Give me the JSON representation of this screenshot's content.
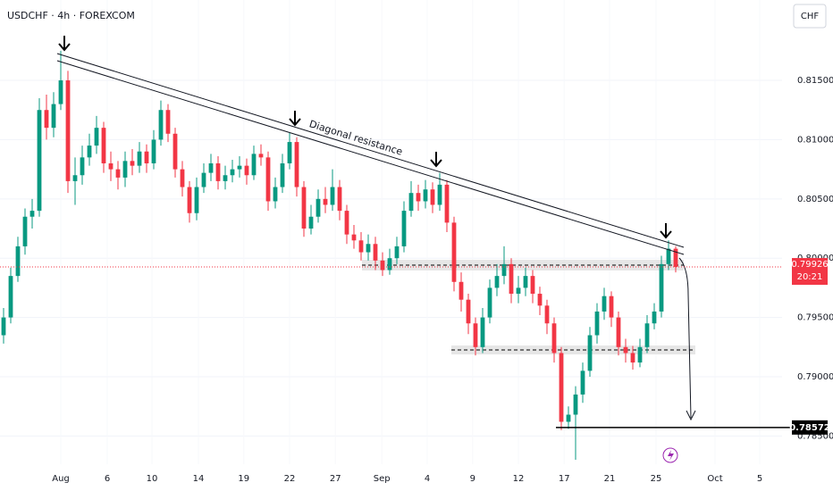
{
  "chart_data": {
    "type": "candlestick",
    "title": "USDCHF · 4h · FOREXCOM",
    "currency": "CHF",
    "annotation": "Diagonal resistance",
    "up_color": "#089981",
    "down_color": "#f23645",
    "open": [
      0.7935,
      0.795,
      0.7985,
      0.801,
      0.8035,
      0.804,
      0.8125,
      0.811,
      0.813,
      0.815,
      0.8065,
      0.807,
      0.8085,
      0.8095,
      0.811,
      0.808,
      0.8075,
      0.8068,
      0.8082,
      0.8078,
      0.809,
      0.808,
      0.81,
      0.8125,
      0.8105,
      0.8075,
      0.806,
      0.8038,
      0.806,
      0.8072,
      0.808,
      0.8065,
      0.807,
      0.8075,
      0.8078,
      0.807,
      0.8088,
      0.8085,
      0.8048,
      0.806,
      0.808,
      0.8098,
      0.806,
      0.8025,
      0.8035,
      0.805,
      0.8045,
      0.806,
      0.804,
      0.802,
      0.8015,
      0.8005,
      0.8012,
      0.7998,
      0.799,
      0.8,
      0.801,
      0.804,
      0.8055,
      0.8048,
      0.8058,
      0.8045,
      0.8062,
      0.803,
      0.798,
      0.7965,
      0.7945,
      0.7925,
      0.795,
      0.7975,
      0.7985,
      0.7995,
      0.797,
      0.7975,
      0.7985,
      0.797,
      0.796,
      0.7945,
      0.792,
      0.7862,
      0.7868,
      0.7885,
      0.7905,
      0.7935,
      0.7955,
      0.7968,
      0.795,
      0.7925,
      0.792,
      0.7912,
      0.7925,
      0.7945,
      0.7955,
      0.7995,
      0.8008
    ],
    "high": [
      0.7958,
      0.7992,
      0.8018,
      0.8042,
      0.805,
      0.8135,
      0.8138,
      0.814,
      0.8175,
      0.8158,
      0.8085,
      0.8095,
      0.8105,
      0.812,
      0.8115,
      0.809,
      0.8082,
      0.809,
      0.8092,
      0.8098,
      0.8096,
      0.8108,
      0.8133,
      0.813,
      0.811,
      0.8082,
      0.8065,
      0.8068,
      0.808,
      0.8088,
      0.8086,
      0.8078,
      0.8083,
      0.8086,
      0.8084,
      0.8095,
      0.8096,
      0.809,
      0.8068,
      0.8088,
      0.8106,
      0.8102,
      0.8065,
      0.8045,
      0.8058,
      0.806,
      0.8075,
      0.8066,
      0.8045,
      0.8028,
      0.8022,
      0.802,
      0.8018,
      0.8005,
      0.8008,
      0.8018,
      0.8048,
      0.8065,
      0.8062,
      0.8066,
      0.8064,
      0.8072,
      0.8066,
      0.8035,
      0.7988,
      0.797,
      0.795,
      0.7958,
      0.7982,
      0.7995,
      0.801,
      0.8,
      0.7985,
      0.7992,
      0.799,
      0.7976,
      0.7965,
      0.795,
      0.7925,
      0.7875,
      0.7892,
      0.7912,
      0.7942,
      0.7962,
      0.7975,
      0.7972,
      0.7955,
      0.7932,
      0.7926,
      0.7932,
      0.7952,
      0.7962,
      0.8002,
      0.8015,
      0.801
    ],
    "low": [
      0.7928,
      0.7945,
      0.798,
      0.8003,
      0.8025,
      0.8035,
      0.81,
      0.8102,
      0.8125,
      0.8055,
      0.8045,
      0.8062,
      0.8078,
      0.8088,
      0.8072,
      0.8065,
      0.8058,
      0.806,
      0.807,
      0.8072,
      0.8072,
      0.8075,
      0.8095,
      0.8098,
      0.8068,
      0.8052,
      0.803,
      0.8032,
      0.8055,
      0.8065,
      0.8058,
      0.8058,
      0.8064,
      0.8068,
      0.8062,
      0.8066,
      0.8078,
      0.804,
      0.8042,
      0.8055,
      0.8075,
      0.8052,
      0.8018,
      0.802,
      0.803,
      0.8038,
      0.804,
      0.8032,
      0.8012,
      0.8008,
      0.7998,
      0.7998,
      0.799,
      0.7985,
      0.7986,
      0.7995,
      0.8005,
      0.8035,
      0.804,
      0.8042,
      0.8038,
      0.804,
      0.8022,
      0.7972,
      0.7955,
      0.7936,
      0.7918,
      0.792,
      0.7945,
      0.7968,
      0.7978,
      0.7962,
      0.7962,
      0.7968,
      0.7962,
      0.7952,
      0.7936,
      0.7912,
      0.7855,
      0.7856,
      0.783,
      0.7878,
      0.79,
      0.7928,
      0.7948,
      0.7942,
      0.7918,
      0.7912,
      0.7906,
      0.7908,
      0.792,
      0.794,
      0.795,
      0.799,
      0.7988
    ],
    "close": [
      0.795,
      0.7985,
      0.801,
      0.8035,
      0.804,
      0.8125,
      0.811,
      0.813,
      0.815,
      0.8065,
      0.807,
      0.8085,
      0.8095,
      0.811,
      0.808,
      0.8075,
      0.8068,
      0.8082,
      0.8078,
      0.809,
      0.808,
      0.81,
      0.8125,
      0.8105,
      0.8075,
      0.806,
      0.8038,
      0.806,
      0.8072,
      0.808,
      0.8065,
      0.807,
      0.8075,
      0.8078,
      0.807,
      0.8088,
      0.8085,
      0.8048,
      0.806,
      0.808,
      0.8098,
      0.806,
      0.8025,
      0.8035,
      0.805,
      0.8045,
      0.806,
      0.804,
      0.802,
      0.8015,
      0.8005,
      0.8012,
      0.7998,
      0.799,
      0.8,
      0.801,
      0.804,
      0.8055,
      0.8048,
      0.8058,
      0.8045,
      0.8062,
      0.803,
      0.798,
      0.7965,
      0.7945,
      0.7925,
      0.795,
      0.7975,
      0.7985,
      0.7995,
      0.797,
      0.7975,
      0.7985,
      0.797,
      0.796,
      0.7945,
      0.792,
      0.7862,
      0.7868,
      0.7885,
      0.7905,
      0.7935,
      0.7955,
      0.7968,
      0.795,
      0.7925,
      0.792,
      0.7912,
      0.7925,
      0.7945,
      0.7955,
      0.7995,
      0.8008,
      0.79926
    ],
    "xlim": [
      0,
      109.375
    ],
    "xticks": [
      {
        "value": 8.5,
        "label": "Aug"
      },
      {
        "value": 15,
        "label": "6"
      },
      {
        "value": 21.25,
        "label": "10"
      },
      {
        "value": 27.75,
        "label": "14"
      },
      {
        "value": 34.1,
        "label": "19"
      },
      {
        "value": 40.5,
        "label": "22"
      },
      {
        "value": 46.9,
        "label": "27"
      },
      {
        "value": 53.4,
        "label": "Sep"
      },
      {
        "value": 59.75,
        "label": "4"
      },
      {
        "value": 66.1,
        "label": "9"
      },
      {
        "value": 72.5,
        "label": "12"
      },
      {
        "value": 78.9,
        "label": "17"
      },
      {
        "value": 85.25,
        "label": "21"
      },
      {
        "value": 91.75,
        "label": "25"
      },
      {
        "value": 100,
        "label": "Oct"
      },
      {
        "value": 106.25,
        "label": "5"
      }
    ],
    "ylim": [
      0.78262,
      0.82178
    ],
    "yticks": [
      {
        "value": 0.785,
        "label": "0.78500"
      },
      {
        "value": 0.79,
        "label": "0.79000"
      },
      {
        "value": 0.795,
        "label": "0.79500"
      },
      {
        "value": 0.8,
        "label": "0.80000"
      },
      {
        "value": 0.805,
        "label": "0.80500"
      },
      {
        "value": 0.81,
        "label": "0.81000"
      },
      {
        "value": 0.815,
        "label": "0.81500"
      }
    ],
    "last_price": 0.79926,
    "countdown": "20:21",
    "target": 0.78572
  }
}
